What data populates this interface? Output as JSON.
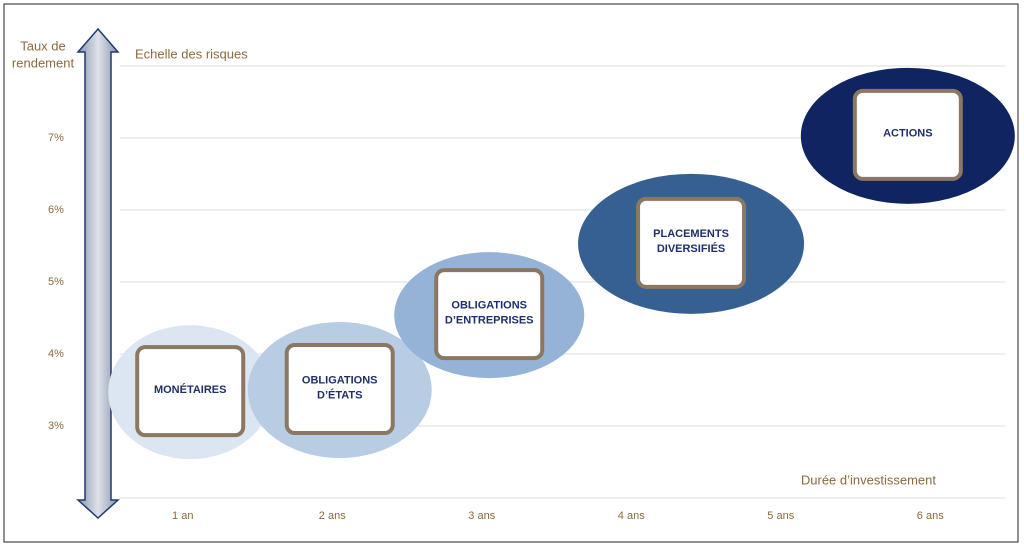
{
  "chart_data": {
    "type": "risk-bubbles",
    "y_axis_title": [
      "Taux de",
      "rendement"
    ],
    "arrow_label": "Echelle des risques",
    "x_axis_title": "Durée d’investissement",
    "xlim": [
      0.5,
      6.5
    ],
    "xticks": [
      {
        "value": 1,
        "label": "1 an"
      },
      {
        "value": 2,
        "label": "2 ans"
      },
      {
        "value": 3,
        "label": "3 ans"
      },
      {
        "value": 4,
        "label": "4 ans"
      },
      {
        "value": 5,
        "label": "5 ans"
      },
      {
        "value": 6,
        "label": "6 ans"
      }
    ],
    "ylim": [
      2,
      8
    ],
    "yticks": [
      {
        "value": 3,
        "label": "3%"
      },
      {
        "value": 4,
        "label": "4%"
      },
      {
        "value": 5,
        "label": "5%"
      },
      {
        "value": 6,
        "label": "6%"
      },
      {
        "value": 7,
        "label": "7%"
      }
    ],
    "grid": true,
    "points": [
      {
        "label": [
          "MONÉTAIRES"
        ],
        "x": 1.05,
        "y": 3.47,
        "color": "#dce6f2"
      },
      {
        "label": [
          "OBLIGATIONS",
          "D’ÉTATS"
        ],
        "x": 2.05,
        "y": 3.5,
        "color": "#b8cce4"
      },
      {
        "label": [
          "OBLIGATIONS",
          "D’ENTREPRISES"
        ],
        "x": 3.05,
        "y": 4.54,
        "color": "#95b3d7"
      },
      {
        "label": [
          "PLACEMENTS",
          "DIVERSIFIÉS"
        ],
        "x": 4.4,
        "y": 5.53,
        "color": "#366092"
      },
      {
        "label": [
          "ACTIONS"
        ],
        "x": 5.85,
        "y": 7.03,
        "color": "#0f2460"
      }
    ]
  }
}
